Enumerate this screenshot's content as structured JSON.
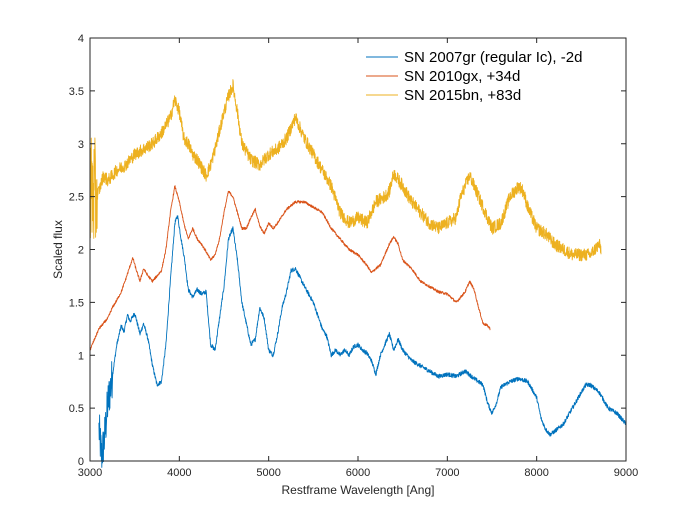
{
  "chart_data": {
    "type": "line",
    "title": "",
    "xlabel": "Restframe Wavelength [Ang]",
    "ylabel": "Scaled flux",
    "xlim": [
      3000,
      9000
    ],
    "ylim": [
      0,
      4
    ],
    "xticks": [
      3000,
      4000,
      5000,
      6000,
      7000,
      8000,
      9000
    ],
    "yticks": [
      0,
      0.5,
      1,
      1.5,
      2,
      2.5,
      3,
      3.5,
      4
    ],
    "xtick_labels": [
      "3000",
      "4000",
      "5000",
      "6000",
      "7000",
      "8000",
      "9000"
    ],
    "ytick_labels": [
      "0",
      "0.5",
      "1",
      "1.5",
      "2",
      "2.5",
      "3",
      "3.5",
      "4"
    ],
    "grid": false,
    "legend_position": "top-right",
    "series": [
      {
        "name": "SN 2007gr (regular Ic), -2d",
        "color": "#0072BD",
        "noise": 0.02,
        "noisy_range": [
          3100,
          3250
        ],
        "noisy_amp": 0.2,
        "points": [
          [
            3100,
            0.3
          ],
          [
            3130,
            0.05
          ],
          [
            3160,
            0.2
          ],
          [
            3200,
            0.55
          ],
          [
            3250,
            0.8
          ],
          [
            3300,
            1.1
          ],
          [
            3350,
            1.28
          ],
          [
            3380,
            1.22
          ],
          [
            3420,
            1.38
          ],
          [
            3450,
            1.32
          ],
          [
            3500,
            1.4
          ],
          [
            3560,
            1.2
          ],
          [
            3600,
            1.3
          ],
          [
            3650,
            1.15
          ],
          [
            3700,
            0.9
          ],
          [
            3750,
            0.72
          ],
          [
            3800,
            0.75
          ],
          [
            3850,
            1.1
          ],
          [
            3900,
            1.7
          ],
          [
            3950,
            2.25
          ],
          [
            3980,
            2.32
          ],
          [
            4020,
            2.1
          ],
          [
            4060,
            1.9
          ],
          [
            4100,
            1.62
          ],
          [
            4150,
            1.55
          ],
          [
            4200,
            1.62
          ],
          [
            4250,
            1.58
          ],
          [
            4300,
            1.6
          ],
          [
            4350,
            1.1
          ],
          [
            4400,
            1.05
          ],
          [
            4450,
            1.35
          ],
          [
            4500,
            1.65
          ],
          [
            4550,
            2.1
          ],
          [
            4600,
            2.2
          ],
          [
            4650,
            1.9
          ],
          [
            4700,
            1.5
          ],
          [
            4750,
            1.3
          ],
          [
            4800,
            1.1
          ],
          [
            4850,
            1.15
          ],
          [
            4900,
            1.45
          ],
          [
            4950,
            1.35
          ],
          [
            5000,
            1.05
          ],
          [
            5050,
            1.0
          ],
          [
            5100,
            1.2
          ],
          [
            5150,
            1.45
          ],
          [
            5200,
            1.6
          ],
          [
            5250,
            1.8
          ],
          [
            5300,
            1.82
          ],
          [
            5400,
            1.65
          ],
          [
            5500,
            1.5
          ],
          [
            5600,
            1.25
          ],
          [
            5650,
            1.18
          ],
          [
            5700,
            1.0
          ],
          [
            5750,
            1.05
          ],
          [
            5800,
            1.0
          ],
          [
            5850,
            1.05
          ],
          [
            5900,
            1.0
          ],
          [
            5950,
            1.08
          ],
          [
            6000,
            1.1
          ],
          [
            6050,
            1.05
          ],
          [
            6100,
            1.02
          ],
          [
            6150,
            0.95
          ],
          [
            6200,
            0.82
          ],
          [
            6250,
            1.0
          ],
          [
            6300,
            1.1
          ],
          [
            6350,
            1.2
          ],
          [
            6400,
            1.05
          ],
          [
            6450,
            1.15
          ],
          [
            6500,
            1.05
          ],
          [
            6600,
            0.95
          ],
          [
            6700,
            0.9
          ],
          [
            6800,
            0.85
          ],
          [
            6900,
            0.8
          ],
          [
            7000,
            0.82
          ],
          [
            7100,
            0.8
          ],
          [
            7200,
            0.85
          ],
          [
            7300,
            0.78
          ],
          [
            7400,
            0.72
          ],
          [
            7450,
            0.55
          ],
          [
            7500,
            0.45
          ],
          [
            7550,
            0.55
          ],
          [
            7600,
            0.7
          ],
          [
            7700,
            0.75
          ],
          [
            7800,
            0.78
          ],
          [
            7900,
            0.75
          ],
          [
            8000,
            0.6
          ],
          [
            8050,
            0.4
          ],
          [
            8100,
            0.3
          ],
          [
            8150,
            0.25
          ],
          [
            8200,
            0.28
          ],
          [
            8300,
            0.35
          ],
          [
            8400,
            0.5
          ],
          [
            8500,
            0.65
          ],
          [
            8550,
            0.72
          ],
          [
            8600,
            0.72
          ],
          [
            8700,
            0.65
          ],
          [
            8800,
            0.5
          ],
          [
            8900,
            0.45
          ],
          [
            9000,
            0.35
          ]
        ]
      },
      {
        "name": "SN 2010gx, +34d",
        "color": "#D95319",
        "noise": 0.012,
        "points": [
          [
            3000,
            1.05
          ],
          [
            3050,
            1.15
          ],
          [
            3100,
            1.25
          ],
          [
            3150,
            1.3
          ],
          [
            3200,
            1.35
          ],
          [
            3250,
            1.45
          ],
          [
            3300,
            1.52
          ],
          [
            3350,
            1.6
          ],
          [
            3400,
            1.72
          ],
          [
            3450,
            1.85
          ],
          [
            3480,
            1.92
          ],
          [
            3520,
            1.8
          ],
          [
            3560,
            1.7
          ],
          [
            3600,
            1.82
          ],
          [
            3650,
            1.75
          ],
          [
            3700,
            1.7
          ],
          [
            3800,
            1.8
          ],
          [
            3850,
            2.0
          ],
          [
            3900,
            2.35
          ],
          [
            3950,
            2.6
          ],
          [
            4000,
            2.45
          ],
          [
            4050,
            2.25
          ],
          [
            4100,
            2.1
          ],
          [
            4150,
            2.2
          ],
          [
            4200,
            2.1
          ],
          [
            4250,
            2.05
          ],
          [
            4300,
            1.98
          ],
          [
            4350,
            1.9
          ],
          [
            4400,
            1.95
          ],
          [
            4450,
            2.1
          ],
          [
            4500,
            2.35
          ],
          [
            4550,
            2.55
          ],
          [
            4600,
            2.5
          ],
          [
            4650,
            2.35
          ],
          [
            4700,
            2.2
          ],
          [
            4750,
            2.2
          ],
          [
            4800,
            2.3
          ],
          [
            4850,
            2.38
          ],
          [
            4900,
            2.22
          ],
          [
            4950,
            2.15
          ],
          [
            5000,
            2.25
          ],
          [
            5050,
            2.2
          ],
          [
            5100,
            2.25
          ],
          [
            5200,
            2.38
          ],
          [
            5300,
            2.45
          ],
          [
            5400,
            2.45
          ],
          [
            5500,
            2.4
          ],
          [
            5600,
            2.35
          ],
          [
            5700,
            2.2
          ],
          [
            5800,
            2.1
          ],
          [
            5900,
            2.0
          ],
          [
            6000,
            1.95
          ],
          [
            6100,
            1.85
          ],
          [
            6150,
            1.78
          ],
          [
            6200,
            1.82
          ],
          [
            6250,
            1.85
          ],
          [
            6300,
            1.95
          ],
          [
            6350,
            2.05
          ],
          [
            6400,
            2.12
          ],
          [
            6450,
            2.05
          ],
          [
            6500,
            1.9
          ],
          [
            6600,
            1.82
          ],
          [
            6700,
            1.7
          ],
          [
            6800,
            1.65
          ],
          [
            6900,
            1.6
          ],
          [
            7000,
            1.58
          ],
          [
            7100,
            1.5
          ],
          [
            7200,
            1.6
          ],
          [
            7250,
            1.7
          ],
          [
            7300,
            1.62
          ],
          [
            7350,
            1.45
          ],
          [
            7400,
            1.3
          ],
          [
            7450,
            1.28
          ],
          [
            7480,
            1.25
          ]
        ]
      },
      {
        "name": "SN 2015bn, +83d",
        "color": "#EDB120",
        "noise": 0.06,
        "noisy_range": [
          3000,
          3080
        ],
        "noisy_amp": 0.55,
        "points": [
          [
            3000,
            2.6
          ],
          [
            3050,
            2.5
          ],
          [
            3100,
            2.55
          ],
          [
            3150,
            2.7
          ],
          [
            3200,
            2.65
          ],
          [
            3300,
            2.75
          ],
          [
            3400,
            2.8
          ],
          [
            3500,
            2.9
          ],
          [
            3600,
            2.95
          ],
          [
            3700,
            3.0
          ],
          [
            3800,
            3.1
          ],
          [
            3900,
            3.25
          ],
          [
            3950,
            3.42
          ],
          [
            4000,
            3.3
          ],
          [
            4050,
            3.05
          ],
          [
            4100,
            3.0
          ],
          [
            4150,
            2.9
          ],
          [
            4200,
            2.85
          ],
          [
            4300,
            2.7
          ],
          [
            4350,
            2.8
          ],
          [
            4400,
            2.95
          ],
          [
            4500,
            3.3
          ],
          [
            4550,
            3.45
          ],
          [
            4600,
            3.55
          ],
          [
            4650,
            3.3
          ],
          [
            4700,
            3.0
          ],
          [
            4800,
            2.85
          ],
          [
            4900,
            2.8
          ],
          [
            5000,
            2.9
          ],
          [
            5100,
            2.95
          ],
          [
            5200,
            3.05
          ],
          [
            5300,
            3.25
          ],
          [
            5400,
            3.05
          ],
          [
            5500,
            2.9
          ],
          [
            5600,
            2.75
          ],
          [
            5700,
            2.6
          ],
          [
            5800,
            2.35
          ],
          [
            5900,
            2.25
          ],
          [
            6000,
            2.3
          ],
          [
            6100,
            2.25
          ],
          [
            6150,
            2.35
          ],
          [
            6200,
            2.45
          ],
          [
            6300,
            2.5
          ],
          [
            6350,
            2.55
          ],
          [
            6400,
            2.72
          ],
          [
            6500,
            2.6
          ],
          [
            6600,
            2.45
          ],
          [
            6700,
            2.35
          ],
          [
            6800,
            2.25
          ],
          [
            6900,
            2.2
          ],
          [
            7000,
            2.25
          ],
          [
            7100,
            2.3
          ],
          [
            7150,
            2.5
          ],
          [
            7250,
            2.7
          ],
          [
            7300,
            2.6
          ],
          [
            7400,
            2.4
          ],
          [
            7500,
            2.2
          ],
          [
            7600,
            2.25
          ],
          [
            7700,
            2.5
          ],
          [
            7800,
            2.6
          ],
          [
            7850,
            2.55
          ],
          [
            7900,
            2.4
          ],
          [
            8000,
            2.2
          ],
          [
            8100,
            2.15
          ],
          [
            8200,
            2.05
          ],
          [
            8300,
            2.0
          ],
          [
            8400,
            1.95
          ],
          [
            8500,
            1.95
          ],
          [
            8600,
            1.95
          ],
          [
            8700,
            2.05
          ],
          [
            8720,
            2.0
          ]
        ]
      }
    ]
  }
}
